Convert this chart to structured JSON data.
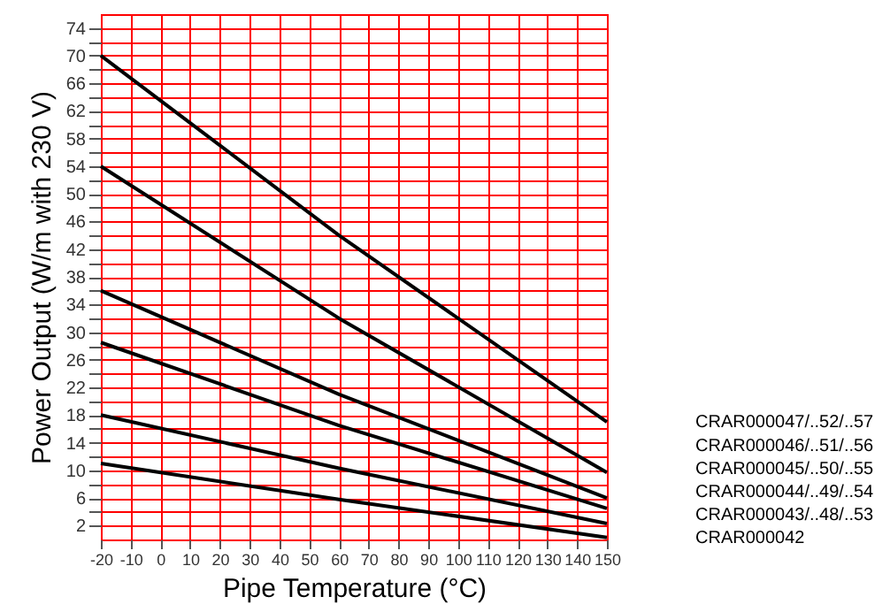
{
  "chart_data": {
    "type": "line",
    "xlabel": "Pipe Temperature (°C)",
    "ylabel": "Power Output (W/m with 230 V)",
    "x": [
      -20,
      60,
      150
    ],
    "series": [
      {
        "name": "CRAR000047/..52/..57",
        "color": "#000000",
        "values": [
          70,
          44,
          17
        ]
      },
      {
        "name": "CRAR000046/..51/..56",
        "color": "#000000",
        "values": [
          54,
          32,
          9.7
        ]
      },
      {
        "name": "CRAR000045/..50/..55",
        "color": "#000000",
        "values": [
          36,
          21,
          6
        ]
      },
      {
        "name": "CRAR000044/..49/..54",
        "color": "#000000",
        "values": [
          28.5,
          16.5,
          4.5
        ]
      },
      {
        "name": "CRAR000043/..48/..53",
        "color": "#000000",
        "values": [
          18,
          10.3,
          2.3
        ]
      },
      {
        "name": "CRAR000042",
        "color": "#000000",
        "values": [
          11,
          5.8,
          0.3
        ]
      }
    ],
    "xlim": [
      -20,
      150
    ],
    "xticks": [
      -20,
      -10,
      0,
      10,
      20,
      30,
      40,
      50,
      60,
      70,
      80,
      90,
      100,
      110,
      120,
      130,
      140,
      150
    ],
    "ylim": [
      0,
      76
    ],
    "yticks": [
      2,
      {
        "value": 4,
        "label": null
      },
      6,
      {
        "value": 8,
        "label": null
      },
      10,
      {
        "value": 12,
        "label": null
      },
      14,
      {
        "value": 16,
        "label": null
      },
      18,
      {
        "value": 20,
        "label": null
      },
      22,
      {
        "value": 24,
        "label": null
      },
      26,
      {
        "value": 28,
        "label": null
      },
      30,
      {
        "value": 32,
        "label": null
      },
      34,
      {
        "value": 36,
        "label": null
      },
      38,
      {
        "value": 40,
        "label": null
      },
      42,
      {
        "value": 44,
        "label": null
      },
      46,
      {
        "value": 48,
        "label": null
      },
      50,
      {
        "value": 52,
        "label": null
      },
      54,
      {
        "value": 56,
        "label": null
      },
      58,
      {
        "value": 60,
        "label": null
      },
      62,
      {
        "value": 64,
        "label": null
      },
      66,
      {
        "value": 68,
        "label": null
      },
      70,
      {
        "value": 72,
        "label": null
      },
      74
    ],
    "grid": true,
    "marker": "none",
    "line_style": "solid"
  }
}
